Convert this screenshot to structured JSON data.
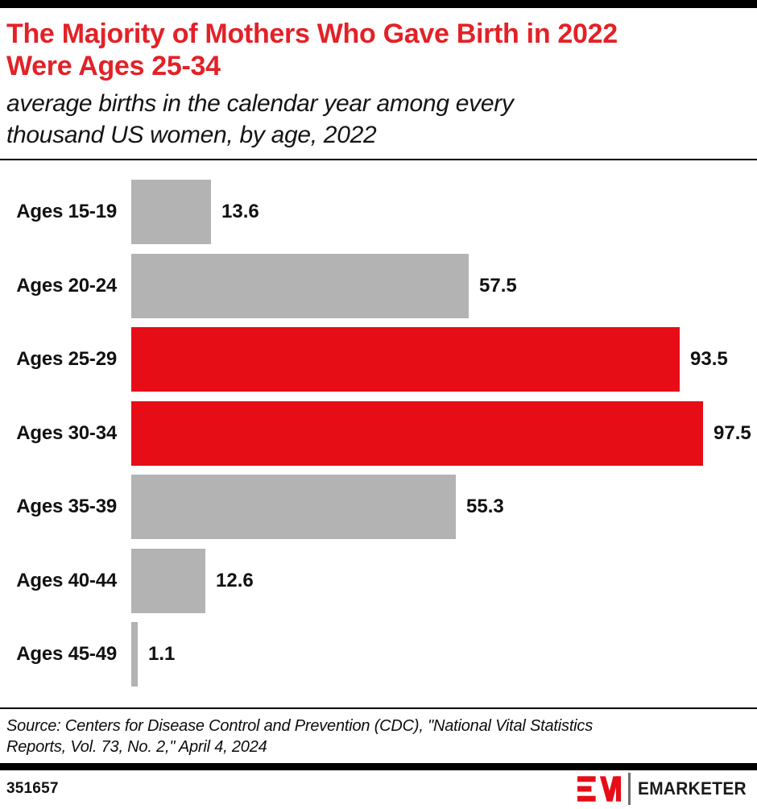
{
  "header": {
    "title": "The Majority of Mothers Who Gave Birth in 2022\nWere Ages 25-34",
    "subtitle": "average births in the calendar year among every\nthousand US women, by age, 2022"
  },
  "chart_data": {
    "type": "bar",
    "orientation": "horizontal",
    "title": "The Majority of Mothers Who Gave Birth in 2022 Were Ages 25-34",
    "subtitle": "average births in the calendar year among every thousand US women, by age, 2022",
    "categories": [
      "Ages 15-19",
      "Ages 20-24",
      "Ages 25-29",
      "Ages 30-34",
      "Ages 35-39",
      "Ages 40-44",
      "Ages 45-49"
    ],
    "values": [
      13.6,
      57.5,
      93.5,
      97.5,
      55.3,
      12.6,
      1.1
    ],
    "value_labels": [
      "13.6",
      "57.5",
      "93.5",
      "97.5",
      "55.3",
      "12.6",
      "1.1"
    ],
    "highlighted_categories": [
      "Ages 25-29",
      "Ages 30-34"
    ],
    "xlim": [
      0,
      100
    ],
    "grid": false,
    "legend": false,
    "value_labels_position": "end-of-bar"
  },
  "colors": {
    "title_red": "#e32127",
    "highlight_bar": "#e60d17",
    "default_bar": "#b3b3b3",
    "accent_black": "#000000",
    "text_dark": "#111111"
  },
  "source": {
    "text": "Source: Centers for Disease Control and Prevention (CDC), \"National Vital Statistics\nReports, Vol. 73, No. 2,\" April 4, 2024"
  },
  "footer": {
    "chart_id": "351657",
    "brand": "EMARKETER"
  }
}
